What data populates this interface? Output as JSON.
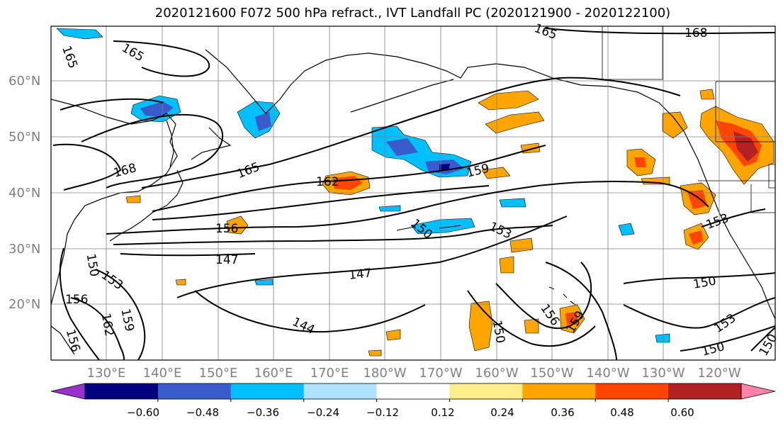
{
  "title": "2020121600 F072 500 hPa refract., IVT Landfall PC (2020121900 - 2020122100)",
  "map": {
    "lat_labels": [
      "60°N",
      "50°N",
      "40°N",
      "30°N",
      "20°N"
    ],
    "lon_labels": [
      "130°E",
      "140°E",
      "150°E",
      "160°E",
      "170°E",
      "180°W",
      "170°W",
      "160°W",
      "150°W",
      "140°W",
      "130°W",
      "120°W"
    ],
    "contour_labels": [
      "165",
      "165",
      "165",
      "168",
      "168",
      "165",
      "162",
      "159",
      "156",
      "153",
      "153",
      "150",
      "147",
      "147",
      "156",
      "153",
      "150",
      "156",
      "159",
      "162",
      "150",
      "144",
      "156",
      "159",
      "150",
      "153",
      "150",
      "150"
    ],
    "land_color": "#ffffff",
    "grid_color": "#808080"
  },
  "colorbar": {
    "ticks": [
      "−0.60",
      "−0.48",
      "−0.36",
      "−0.24",
      "−0.12",
      "0.12",
      "0.24",
      "0.36",
      "0.48",
      "0.60"
    ],
    "colors": [
      "#9932cc",
      "#000080",
      "#3a5bcc",
      "#00bfff",
      "#b0e2ff",
      "#ffffff",
      "#ffec8b",
      "#ffa500",
      "#ff4500",
      "#b22222",
      "#ff82ab"
    ]
  }
}
